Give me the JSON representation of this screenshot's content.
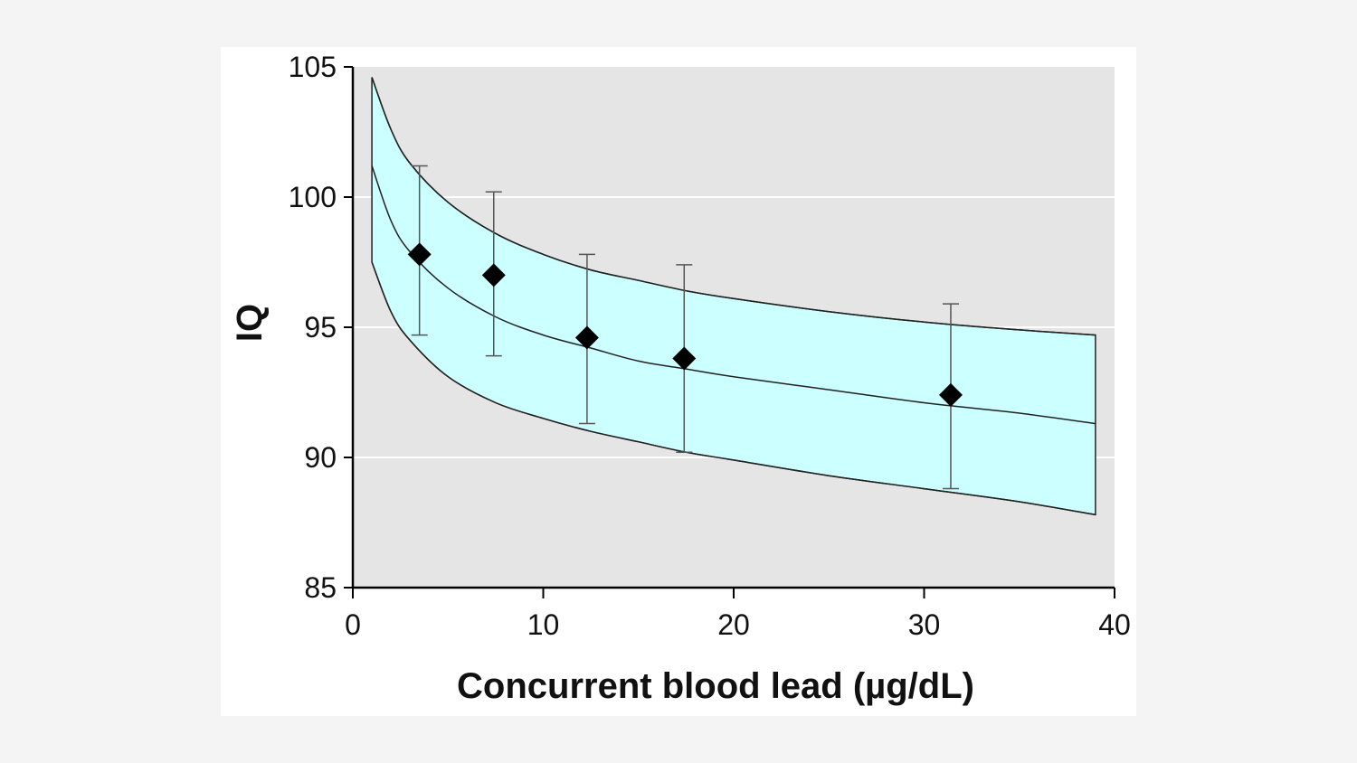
{
  "chart_data": {
    "type": "line",
    "title": "",
    "xlabel": "Concurrent blood lead (µg/dL)",
    "ylabel": "IQ",
    "xlim": [
      0,
      40
    ],
    "ylim": [
      85,
      105
    ],
    "x_ticks": [
      0,
      10,
      20,
      30,
      40
    ],
    "y_ticks": [
      85,
      90,
      95,
      100,
      105
    ],
    "grid": "horizontal",
    "plot_background": "#e5e5e5",
    "band_color": "#ccffff",
    "point_marker": "diamond",
    "curves": {
      "fit": {
        "x": [
          1,
          2,
          3,
          5,
          7.5,
          10,
          12.5,
          15,
          17.5,
          20,
          25,
          30,
          35,
          39
        ],
        "y": [
          101.2,
          99.1,
          97.9,
          96.5,
          95.4,
          94.7,
          94.2,
          93.7,
          93.4,
          93.1,
          92.6,
          92.1,
          91.7,
          91.3
        ]
      },
      "upper": {
        "x": [
          1,
          2,
          3,
          5,
          7.5,
          10,
          12.5,
          15,
          17.5,
          20,
          25,
          30,
          35,
          39
        ],
        "y": [
          104.6,
          102.6,
          101.3,
          99.8,
          98.6,
          97.8,
          97.2,
          96.8,
          96.4,
          96.1,
          95.6,
          95.2,
          94.9,
          94.7
        ]
      },
      "lower": {
        "x": [
          1,
          2,
          3,
          5,
          7.5,
          10,
          12.5,
          15,
          17.5,
          20,
          25,
          30,
          35,
          39
        ],
        "y": [
          97.5,
          95.6,
          94.5,
          93.1,
          92.1,
          91.5,
          91.0,
          90.6,
          90.2,
          89.9,
          89.3,
          88.8,
          88.3,
          87.8
        ]
      }
    },
    "points": [
      {
        "x": 3.5,
        "y": 97.8,
        "err_low": 94.7,
        "err_high": 101.2
      },
      {
        "x": 7.4,
        "y": 97.0,
        "err_low": 93.9,
        "err_high": 100.2
      },
      {
        "x": 12.3,
        "y": 94.6,
        "err_low": 91.3,
        "err_high": 97.8
      },
      {
        "x": 17.4,
        "y": 93.8,
        "err_low": 90.2,
        "err_high": 97.4
      },
      {
        "x": 31.4,
        "y": 92.4,
        "err_low": 88.8,
        "err_high": 95.9
      }
    ]
  }
}
